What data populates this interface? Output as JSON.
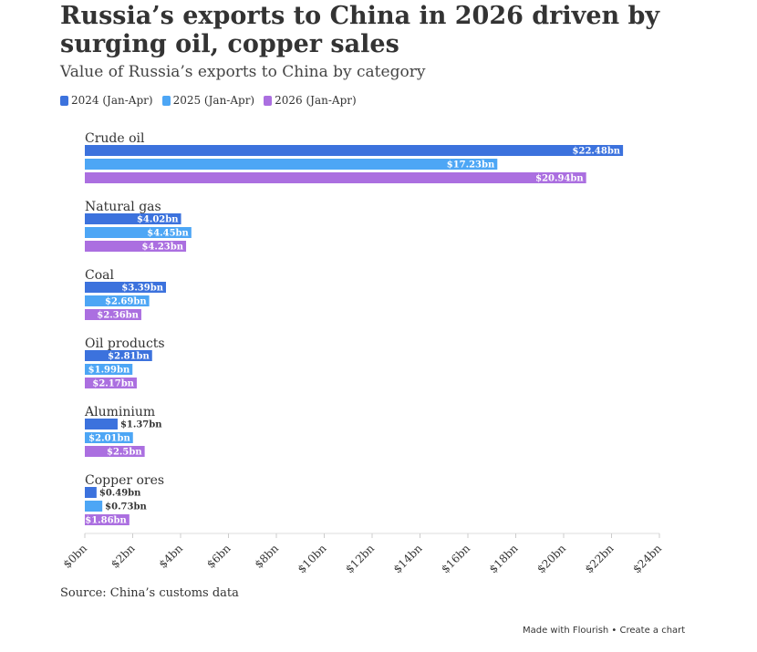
{
  "header": {
    "title": "Russia’s exports to China in 2026 driven by surging oil, copper sales",
    "subtitle": "Value of Russia’s exports to China by category"
  },
  "footer": {
    "source": "Source: China’s customs data",
    "credit": "Made with Flourish • Create a chart"
  },
  "chart_data": {
    "type": "bar",
    "orientation": "horizontal",
    "categories": [
      "Crude oil",
      "Natural gas",
      "Coal",
      "Oil products",
      "Aluminium",
      "Copper ores"
    ],
    "series": [
      {
        "name": "2024 (Jan-Apr)",
        "color": "#3c72dd",
        "values": [
          22.48,
          4.02,
          3.39,
          2.81,
          1.37,
          0.49
        ],
        "labels": [
          "$22.48bn",
          "$4.02bn",
          "$3.39bn",
          "$2.81bn",
          "$1.37bn",
          "$0.49bn"
        ]
      },
      {
        "name": "2025 (Jan-Apr)",
        "color": "#4da6f5",
        "values": [
          17.23,
          4.45,
          2.69,
          1.99,
          2.01,
          0.73
        ],
        "labels": [
          "$17.23bn",
          "$4.45bn",
          "$2.69bn",
          "$1.99bn",
          "$2.01bn",
          "$0.73bn"
        ]
      },
      {
        "name": "2026 (Jan-Apr)",
        "color": "#ab6fe0",
        "values": [
          20.94,
          4.23,
          2.36,
          2.17,
          2.5,
          1.86
        ],
        "labels": [
          "$20.94bn",
          "$4.23bn",
          "$2.36bn",
          "$2.17bn",
          "$2.5bn",
          "$1.86bn"
        ]
      }
    ],
    "xlim": [
      0,
      24
    ],
    "xticks": [
      0,
      2,
      4,
      6,
      8,
      10,
      12,
      14,
      16,
      18,
      20,
      22,
      24
    ],
    "xtick_labels": [
      "$0bn",
      "$2bn",
      "$4bn",
      "$6bn",
      "$8bn",
      "$10bn",
      "$12bn",
      "$14bn",
      "$16bn",
      "$18bn",
      "$20bn",
      "$22bn",
      "$24bn"
    ],
    "legend_position": "top-left",
    "grid": false
  }
}
